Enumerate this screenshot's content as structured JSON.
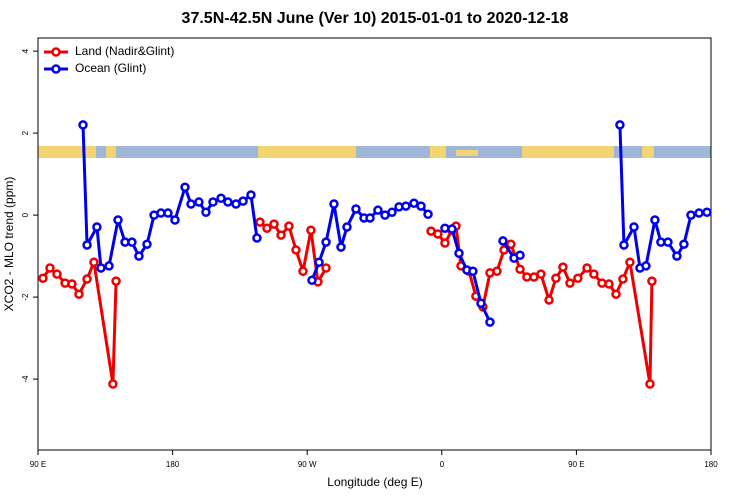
{
  "chart_data": {
    "type": "line",
    "title": "37.5N-42.5N June (Ver 10)   2015-01-01 to 2020-12-18",
    "x_label": "Longitude (deg E)",
    "y_label": "XCO2 - MLO trend (ppm)",
    "xlim": [
      90,
      540
    ],
    "xticks": [
      {
        "value": 90,
        "label": "90 E"
      },
      {
        "value": 180,
        "label": "180"
      },
      {
        "value": 270,
        "label": "90 W"
      },
      {
        "value": 360,
        "label": "0"
      },
      {
        "value": 450,
        "label": "90 E"
      },
      {
        "value": 540,
        "label": "180"
      }
    ],
    "ylim": [
      -5.73,
      4.32
    ],
    "yticks": [
      -4,
      -2,
      0,
      2,
      4
    ],
    "legend": "top-left",
    "series": [
      {
        "name": "Land (Nadir&Glint)",
        "color": "#ee0000",
        "x": [
          93.3,
          98.0,
          102.7,
          108.1,
          112.7,
          117.4,
          122.8,
          127.4,
          140.1,
          142.2,
          null,
          238.4,
          243.1,
          247.8,
          252.5,
          257.8,
          262.5,
          267.2,
          272.5,
          277.2,
          282.6,
          null,
          352.8,
          357.4,
          362.1,
          366.8,
          369.5,
          372.8,
          378.2,
          382.8,
          387.5,
          392.2,
          396.9,
          401.6,
          406.2,
          412.3,
          416.9,
          421.6,
          426.3,
          431.7,
          436.3,
          441.0,
          445.7,
          451.0,
          457.1,
          461.7,
          467.1,
          471.8,
          476.5,
          481.1,
          485.8,
          499.2,
          500.5
        ],
        "values": [
          -1.54,
          -1.29,
          -1.44,
          -1.66,
          -1.68,
          -1.93,
          -1.56,
          -1.15,
          -4.12,
          -1.61,
          null,
          -0.17,
          -0.32,
          -0.22,
          -0.49,
          -0.27,
          -0.85,
          -1.37,
          -0.37,
          -1.63,
          -1.29,
          null,
          -0.39,
          -0.46,
          -0.68,
          -0.37,
          -0.27,
          -1.24,
          -1.37,
          -1.98,
          -2.24,
          -1.41,
          -1.37,
          -0.85,
          -0.71,
          -1.32,
          -1.51,
          -1.51,
          -1.44,
          -2.07,
          -1.54,
          -1.27,
          -1.66,
          -1.54,
          -1.29,
          -1.44,
          -1.66,
          -1.68,
          -1.93,
          -1.56,
          -1.15,
          -4.12,
          -1.61
        ]
      },
      {
        "name": "Ocean (Glint)",
        "color": "#0000ee",
        "x": [
          120.1,
          122.8,
          129.4,
          132.1,
          137.5,
          143.5,
          148.2,
          152.8,
          157.5,
          162.9,
          167.6,
          172.2,
          176.9,
          181.6,
          188.3,
          192.3,
          197.6,
          202.3,
          207.0,
          212.4,
          217.0,
          222.4,
          227.1,
          232.4,
          236.4,
          null,
          273.2,
          277.9,
          282.6,
          287.9,
          292.6,
          296.6,
          302.6,
          308.0,
          312.0,
          317.3,
          322.0,
          326.7,
          331.4,
          336.0,
          341.4,
          346.1,
          350.8,
          null,
          362.1,
          366.8,
          371.5,
          376.8,
          380.8,
          386.2,
          392.2,
          null,
          400.9,
          408.3,
          412.3,
          null,
          479.1,
          481.8,
          488.5,
          492.5,
          496.5,
          502.5,
          506.5,
          511.2,
          517.2,
          521.9,
          526.6,
          532.0,
          537.3
        ],
        "values": [
          2.2,
          -0.73,
          -0.29,
          -1.29,
          -1.24,
          -0.12,
          -0.66,
          -0.66,
          -1.0,
          -0.71,
          0,
          0.05,
          0.05,
          -0.12,
          0.68,
          0.27,
          0.32,
          0.07,
          0.32,
          0.41,
          0.32,
          0.27,
          0.34,
          0.49,
          -0.56,
          null,
          -1.59,
          -1.15,
          -0.66,
          0.27,
          -0.78,
          -0.29,
          0.15,
          -0.07,
          -0.07,
          0.12,
          0,
          0.07,
          0.2,
          0.22,
          0.29,
          0.22,
          0.02,
          null,
          -0.32,
          -0.34,
          -0.93,
          -1.34,
          -1.37,
          -2.15,
          -2.61,
          null,
          -0.63,
          -1.05,
          -0.98,
          null,
          2.2,
          -0.73,
          -0.29,
          -1.29,
          -1.24,
          -0.12,
          -0.66,
          -0.66,
          -1.0,
          -0.71,
          0,
          0.05,
          0.07
        ]
      }
    ]
  }
}
